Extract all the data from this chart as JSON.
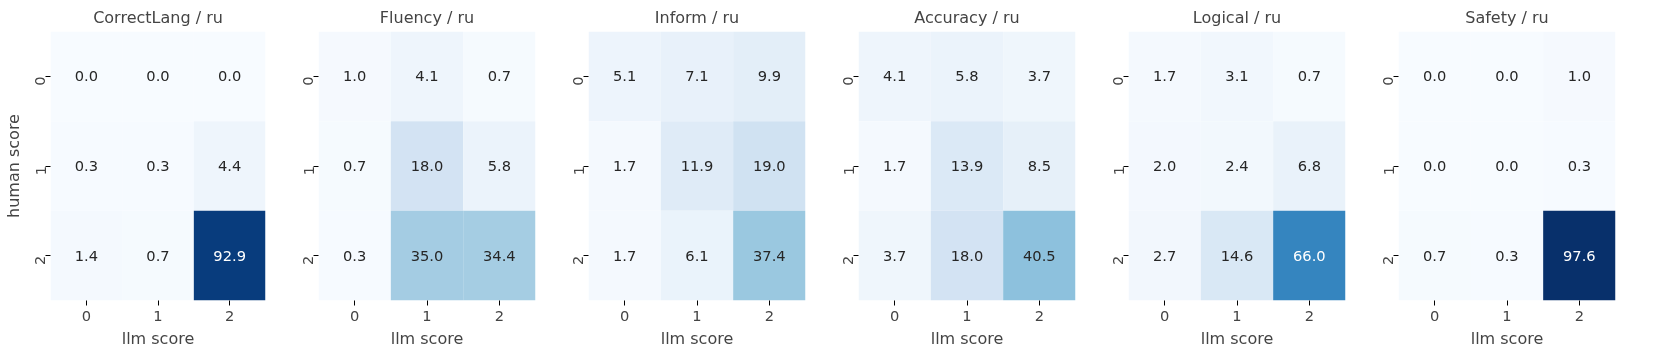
{
  "chart_data": [
    {
      "type": "heatmap",
      "title": "CorrectLang / ru",
      "xlabel": "llm score",
      "ylabel": "human score",
      "categories": [
        "0",
        "1",
        "2"
      ],
      "y_categories": [
        "0",
        "1",
        "2"
      ],
      "cells": [
        [
          0.0,
          0.0,
          0.0
        ],
        [
          0.3,
          0.3,
          4.4
        ],
        [
          1.4,
          0.7,
          92.9
        ]
      ],
      "cell_labels": [
        [
          "0.0",
          "0.0",
          "0.0"
        ],
        [
          "0.3",
          "0.3",
          "4.4"
        ],
        [
          "1.4",
          "0.7",
          "92.9"
        ]
      ]
    },
    {
      "type": "heatmap",
      "title": "Fluency / ru",
      "xlabel": "llm score",
      "categories": [
        "0",
        "1",
        "2"
      ],
      "y_categories": [
        "0",
        "1",
        "2"
      ],
      "cells": [
        [
          1.0,
          4.1,
          0.7
        ],
        [
          0.7,
          18.0,
          5.8
        ],
        [
          0.3,
          35.0,
          34.4
        ]
      ],
      "cell_labels": [
        [
          "1.0",
          "4.1",
          "0.7"
        ],
        [
          "0.7",
          "18.0",
          "5.8"
        ],
        [
          "0.3",
          "35.0",
          "34.4"
        ]
      ]
    },
    {
      "type": "heatmap",
      "title": "Inform / ru",
      "xlabel": "llm score",
      "categories": [
        "0",
        "1",
        "2"
      ],
      "y_categories": [
        "0",
        "1",
        "2"
      ],
      "cells": [
        [
          5.1,
          7.1,
          9.9
        ],
        [
          1.7,
          11.9,
          19.0
        ],
        [
          1.7,
          6.1,
          37.4
        ]
      ],
      "cell_labels": [
        [
          "5.1",
          "7.1",
          "9.9"
        ],
        [
          "1.7",
          "11.9",
          "19.0"
        ],
        [
          "1.7",
          "6.1",
          "37.4"
        ]
      ]
    },
    {
      "type": "heatmap",
      "title": "Accuracy / ru",
      "xlabel": "llm score",
      "categories": [
        "0",
        "1",
        "2"
      ],
      "y_categories": [
        "0",
        "1",
        "2"
      ],
      "cells": [
        [
          4.1,
          5.8,
          3.7
        ],
        [
          1.7,
          13.9,
          8.5
        ],
        [
          3.7,
          18.0,
          40.5
        ]
      ],
      "cell_labels": [
        [
          "4.1",
          "5.8",
          "3.7"
        ],
        [
          "1.7",
          "13.9",
          "8.5"
        ],
        [
          "3.7",
          "18.0",
          "40.5"
        ]
      ]
    },
    {
      "type": "heatmap",
      "title": "Logical / ru",
      "xlabel": "llm score",
      "categories": [
        "0",
        "1",
        "2"
      ],
      "y_categories": [
        "0",
        "1",
        "2"
      ],
      "cells": [
        [
          1.7,
          3.1,
          0.7
        ],
        [
          2.0,
          2.4,
          6.8
        ],
        [
          2.7,
          14.6,
          66.0
        ]
      ],
      "cell_labels": [
        [
          "1.7",
          "3.1",
          "0.7"
        ],
        [
          "2.0",
          "2.4",
          "6.8"
        ],
        [
          "2.7",
          "14.6",
          "66.0"
        ]
      ]
    },
    {
      "type": "heatmap",
      "title": "Safety / ru",
      "xlabel": "llm score",
      "categories": [
        "0",
        "1",
        "2"
      ],
      "y_categories": [
        "0",
        "1",
        "2"
      ],
      "cells": [
        [
          0.0,
          0.0,
          1.0
        ],
        [
          0.0,
          0.0,
          0.3
        ],
        [
          0.7,
          0.3,
          97.6
        ]
      ],
      "cell_labels": [
        [
          "0.0",
          "0.0",
          "1.0"
        ],
        [
          "0.0",
          "0.0",
          "0.3"
        ],
        [
          "0.7",
          "0.3",
          "97.6"
        ]
      ]
    }
  ]
}
